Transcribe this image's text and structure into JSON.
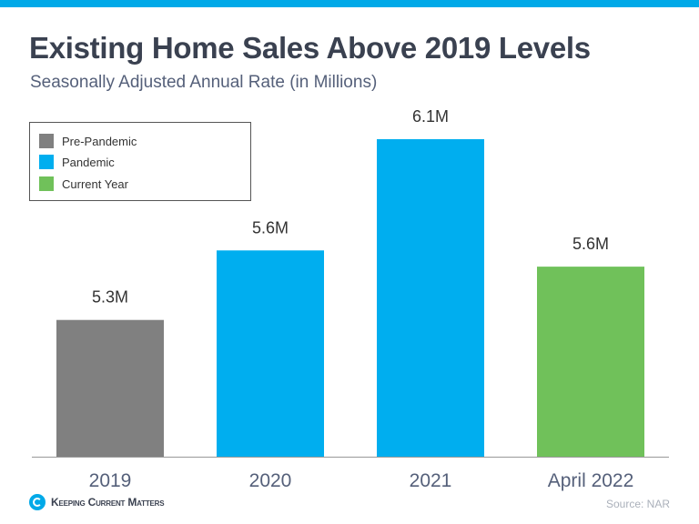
{
  "header": {
    "title": "Existing Home Sales Above 2019 Levels",
    "subtitle": "Seasonally Adjusted Annual Rate (in Millions)"
  },
  "chart_data": {
    "type": "bar",
    "title": "Existing Home Sales Above 2019 Levels",
    "subtitle": "Seasonally Adjusted Annual Rate (in Millions)",
    "categories": [
      "2019",
      "2020",
      "2021",
      "April 2022"
    ],
    "values": [
      5.34,
      5.64,
      6.12,
      5.57
    ],
    "data_labels": [
      "5.3M",
      "5.6M",
      "6.1M",
      "5.6M"
    ],
    "groups": [
      "Pre-Pandemic",
      "Pandemic",
      "Pandemic",
      "Current Year"
    ],
    "colors": [
      "#808080",
      "#00aeef",
      "#00aeef",
      "#70c15a"
    ],
    "ylim": [
      4.75,
      6.15
    ],
    "xlabel": "",
    "ylabel": "",
    "grid": false,
    "legend": {
      "placement": "top-left",
      "entries": [
        {
          "label": "Pre-Pandemic",
          "color": "#808080"
        },
        {
          "label": "Pandemic",
          "color": "#00aeef"
        },
        {
          "label": "Current Year",
          "color": "#70c15a"
        }
      ]
    }
  },
  "footer": {
    "brand": "Keeping Current Matters",
    "source": "Source: NAR"
  }
}
